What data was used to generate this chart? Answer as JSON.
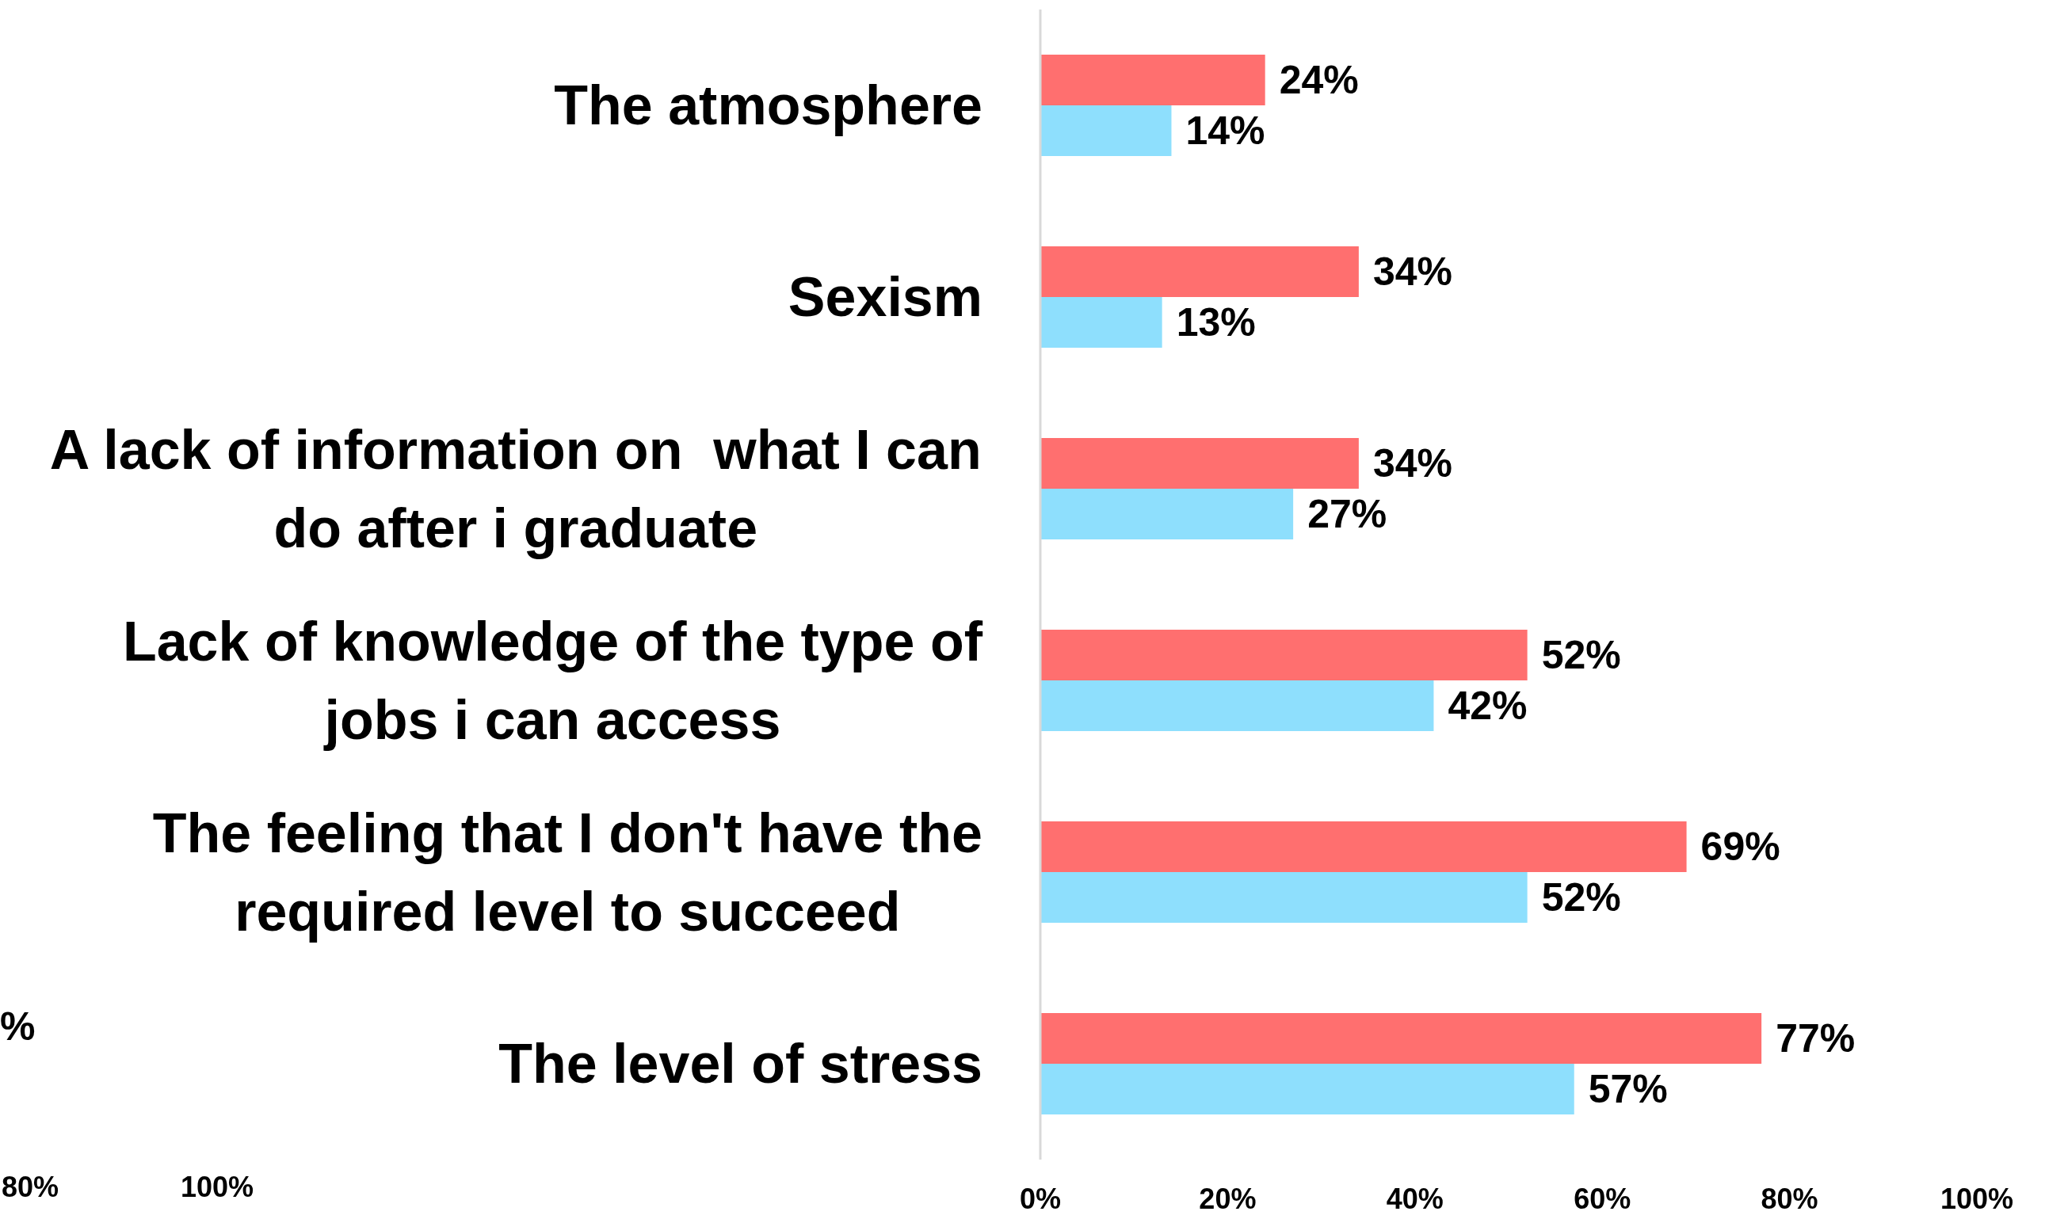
{
  "chart_data": {
    "type": "bar",
    "orientation": "horizontal",
    "categories": [
      "The atmosphere",
      "Sexism",
      "A lack of information on  what I can do after i graduate",
      "Lack of knowledge of the type of jobs i can access",
      "The feeling that I don't have the required level to succeed",
      "The level of stress"
    ],
    "series": [
      {
        "color": "#ff6f6f",
        "values": [
          24,
          34,
          34,
          52,
          69,
          77
        ],
        "value_labels": [
          "24%",
          "34%",
          "34%",
          "52%",
          "69%",
          "77%"
        ]
      },
      {
        "color": "#8edffd",
        "values": [
          14,
          13,
          27,
          42,
          52,
          57
        ],
        "value_labels": [
          "14%",
          "13%",
          "27%",
          "42%",
          "52%",
          "57%"
        ]
      }
    ],
    "xlim": [
      0,
      100
    ],
    "xticks": [
      {
        "value": 0,
        "label": "0%"
      },
      {
        "value": 20,
        "label": "20%"
      },
      {
        "value": 40,
        "label": "40%"
      },
      {
        "value": 60,
        "label": "60%"
      },
      {
        "value": 80,
        "label": "80%"
      },
      {
        "value": 100,
        "label": "100%"
      }
    ],
    "annotations": [
      "%",
      "80%",
      "100%"
    ]
  }
}
